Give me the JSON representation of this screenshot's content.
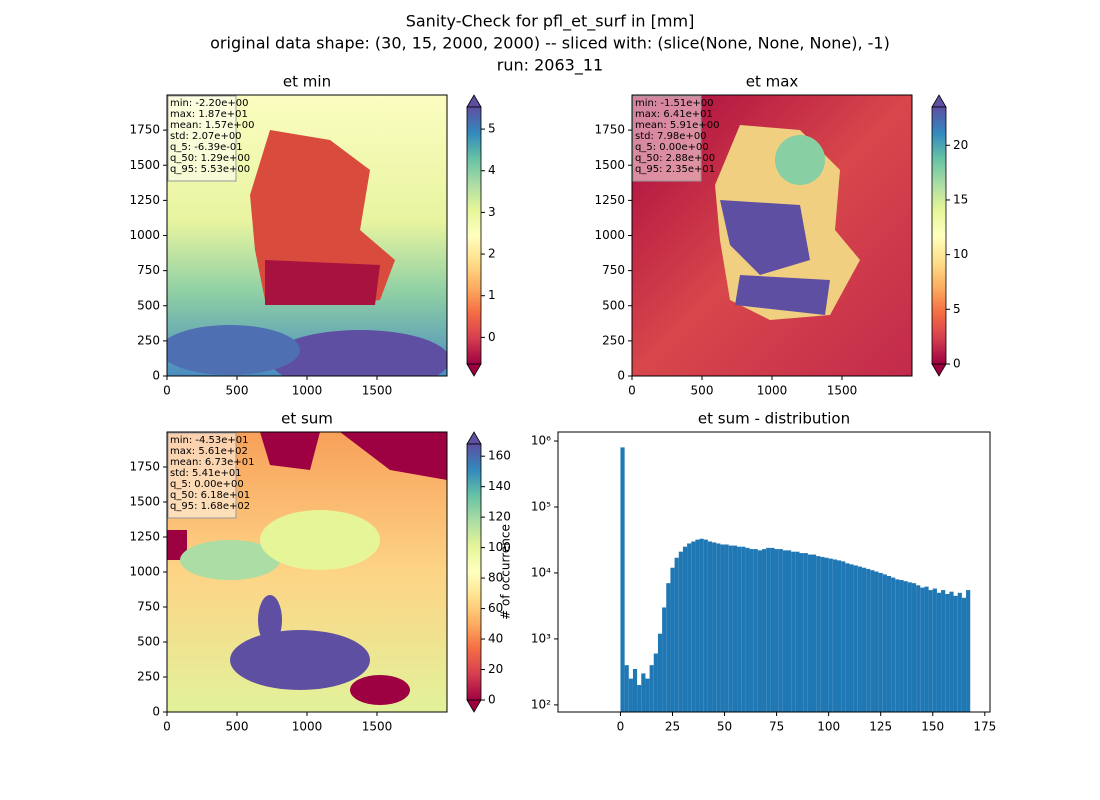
{
  "suptitle": [
    "Sanity-Check for pfl_et_surf in [mm]",
    "original data shape: (30, 15, 2000, 2000) -- sliced with: (slice(None, None, None), -1)",
    "run: 2063_11"
  ],
  "chart_data": [
    {
      "type": "image",
      "title": "et min",
      "xlim": [
        0,
        2000
      ],
      "ylim": [
        0,
        2000
      ],
      "xticks": [
        0,
        500,
        1000,
        1500
      ],
      "yticks": [
        0,
        250,
        500,
        750,
        1000,
        1250,
        1500,
        1750
      ],
      "colorbar": {
        "lim": [
          -0.639,
          5.53
        ],
        "ticks": [
          0,
          1,
          2,
          3,
          4,
          5
        ]
      },
      "stats": [
        "min: -2.20e+00",
        "max: 1.87e+01",
        "mean: 1.57e+00",
        "std: 2.07e+00",
        "q_5: -6.39e-01",
        "q_50: 1.29e+00",
        "q_95: 5.53e+00"
      ]
    },
    {
      "type": "image",
      "title": "et max",
      "xlim": [
        0,
        2000
      ],
      "ylim": [
        0,
        2000
      ],
      "xticks": [
        0,
        500,
        1000,
        1500
      ],
      "yticks": [
        0,
        250,
        500,
        750,
        1000,
        1250,
        1500,
        1750
      ],
      "colorbar": {
        "lim": [
          0,
          23.5
        ],
        "ticks": [
          0,
          5,
          10,
          15,
          20
        ]
      },
      "stats": [
        "min: -1.51e+00",
        "max: 6.41e+01",
        "mean: 5.91e+00",
        "std: 7.98e+00",
        "q_5: 0.00e+00",
        "q_50: 2.88e+00",
        "q_95: 2.35e+01"
      ]
    },
    {
      "type": "image",
      "title": "et sum",
      "xlim": [
        0,
        2000
      ],
      "ylim": [
        0,
        2000
      ],
      "xticks": [
        0,
        500,
        1000,
        1500
      ],
      "yticks": [
        0,
        250,
        500,
        750,
        1000,
        1250,
        1500,
        1750
      ],
      "colorbar": {
        "lim": [
          0,
          168
        ],
        "ticks": [
          0,
          20,
          40,
          60,
          80,
          100,
          120,
          140,
          160
        ]
      },
      "stats": [
        "min: -4.53e+01",
        "max: 5.61e+02",
        "mean: 6.73e+01",
        "std: 5.41e+01",
        "q_5: 0.00e+00",
        "q_50: 6.18e+01",
        "q_95: 1.68e+02"
      ]
    },
    {
      "type": "histogram",
      "title": "et sum - distribution",
      "ylabel": "# of occurrence",
      "color": "#1f77b4",
      "log": true,
      "xlim": [
        -30,
        177.5
      ],
      "ylim": [
        78,
        1370000
      ],
      "xticks": [
        0,
        25,
        50,
        75,
        100,
        125,
        150,
        175
      ],
      "yticks": [
        {
          "value": 100,
          "label": "10²"
        },
        {
          "value": 1000,
          "label": "10³"
        },
        {
          "value": 10000,
          "label": "10⁴"
        },
        {
          "value": 100000,
          "label": "10⁵"
        },
        {
          "value": 1000000,
          "label": "10⁶"
        }
      ],
      "bins": [
        0,
        2,
        4,
        6,
        8,
        10,
        12,
        14,
        16,
        18,
        20,
        22,
        24,
        26,
        28,
        30,
        32,
        34,
        36,
        38,
        40,
        42,
        44,
        46,
        48,
        50,
        52,
        54,
        56,
        58,
        60,
        62,
        64,
        66,
        68,
        70,
        72,
        74,
        76,
        78,
        80,
        82,
        84,
        86,
        88,
        90,
        92,
        94,
        96,
        98,
        100,
        102,
        104,
        106,
        108,
        110,
        112,
        114,
        116,
        118,
        120,
        122,
        124,
        126,
        128,
        130,
        132,
        134,
        136,
        138,
        140,
        142,
        144,
        146,
        148,
        150,
        152,
        154,
        156,
        158,
        160,
        162,
        164,
        166,
        168
      ],
      "values": [
        800000,
        400,
        250,
        350,
        200,
        300,
        250,
        400,
        600,
        1200,
        3000,
        7000,
        12000,
        17000,
        21000,
        25000,
        28000,
        30000,
        32000,
        33000,
        32000,
        30000,
        29000,
        28000,
        27000,
        27000,
        26000,
        26000,
        25000,
        25000,
        24000,
        23000,
        23000,
        22000,
        23000,
        24000,
        24000,
        23000,
        23000,
        22000,
        22000,
        21000,
        21000,
        20000,
        20000,
        19000,
        19000,
        18000,
        17500,
        17000,
        16500,
        16000,
        15500,
        15000,
        14000,
        13500,
        13000,
        12500,
        12000,
        11500,
        11000,
        10500,
        10000,
        9500,
        9000,
        8500,
        8000,
        7800,
        7500,
        7200,
        7000,
        6500,
        6000,
        6200,
        5500,
        5800,
        5000,
        5500,
        4800,
        5200,
        4500,
        5000,
        4200,
        5500
      ]
    }
  ]
}
